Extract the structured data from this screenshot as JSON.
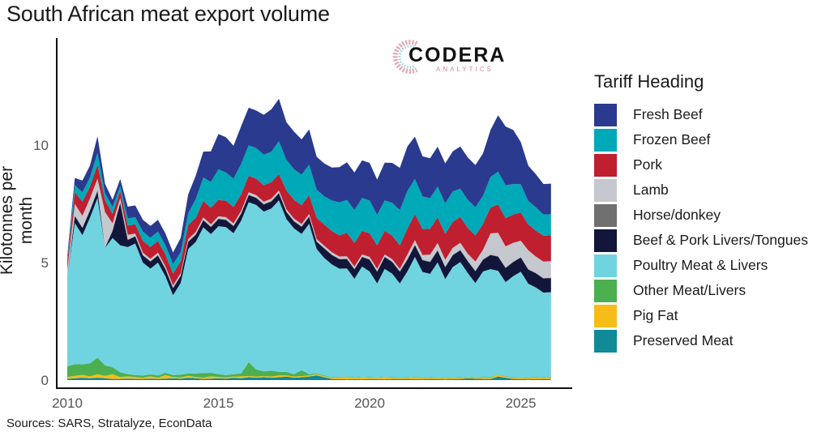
{
  "title": "South African meat export volume",
  "source": "Sources: SARS, Stratalyze, EconData",
  "logo": {
    "name": "CODERA",
    "sub": "ANALYTICS"
  },
  "chart_data": {
    "type": "area",
    "stacked": true,
    "title": "South African meat export volume",
    "xlabel": "",
    "ylabel": "Kilotonnes per month",
    "xlim": [
      2010,
      2026
    ],
    "ylim": [
      0,
      14.5
    ],
    "xticks": [
      2010,
      2015,
      2020,
      2025
    ],
    "xtick_labels": [
      "2010",
      "2015",
      "2020",
      "2025"
    ],
    "yticks": [
      0,
      5,
      10
    ],
    "ytick_labels": [
      "0",
      "5",
      "10"
    ],
    "grid": false,
    "legend_title": "Tariff Heading",
    "legend_position": "right",
    "x": [
      2010.0,
      2010.25,
      2010.5,
      2010.75,
      2011.0,
      2011.25,
      2011.5,
      2011.75,
      2012.0,
      2012.25,
      2012.5,
      2012.75,
      2013.0,
      2013.25,
      2013.5,
      2013.75,
      2014.0,
      2014.25,
      2014.5,
      2014.75,
      2015.0,
      2015.25,
      2015.5,
      2015.75,
      2016.0,
      2016.25,
      2016.5,
      2016.75,
      2017.0,
      2017.25,
      2017.5,
      2017.75,
      2018.0,
      2018.25,
      2018.5,
      2018.75,
      2019.0,
      2019.25,
      2019.5,
      2019.75,
      2020.0,
      2020.25,
      2020.5,
      2020.75,
      2021.0,
      2021.25,
      2021.5,
      2021.75,
      2022.0,
      2022.25,
      2022.5,
      2022.75,
      2023.0,
      2023.25,
      2023.5,
      2023.75,
      2024.0,
      2024.25,
      2024.5,
      2024.75,
      2025.0,
      2025.25,
      2025.5,
      2025.75,
      2026.0
    ],
    "series": [
      {
        "name": "Preserved Meat",
        "color": "#0f8a96",
        "values": [
          0.05,
          0.08,
          0.1,
          0.08,
          0.1,
          0.08,
          0.05,
          0.05,
          0.06,
          0.05,
          0.05,
          0.06,
          0.05,
          0.06,
          0.08,
          0.06,
          0.1,
          0.08,
          0.05,
          0.06,
          0.08,
          0.06,
          0.1,
          0.08,
          0.12,
          0.1,
          0.12,
          0.1,
          0.12,
          0.15,
          0.1,
          0.12,
          0.15,
          0.2,
          0.12,
          0.05,
          0.04,
          0.03,
          0.04,
          0.03,
          0.05,
          0.04,
          0.03,
          0.05,
          0.04,
          0.05,
          0.04,
          0.03,
          0.05,
          0.04,
          0.03,
          0.04,
          0.05,
          0.08,
          0.06,
          0.05,
          0.05,
          0.15,
          0.1,
          0.05,
          0.04,
          0.03,
          0.04,
          0.05,
          0.04
        ]
      },
      {
        "name": "Pig Fat",
        "color": "#f6bd19",
        "values": [
          0.08,
          0.1,
          0.12,
          0.08,
          0.15,
          0.1,
          0.2,
          0.08,
          0.1,
          0.08,
          0.05,
          0.1,
          0.05,
          0.15,
          0.05,
          0.05,
          0.08,
          0.05,
          0.05,
          0.1,
          0.05,
          0.05,
          0.05,
          0.08,
          0.05,
          0.05,
          0.05,
          0.05,
          0.08,
          0.05,
          0.05,
          0.05,
          0.05,
          0.05,
          0.05,
          0.05,
          0.08,
          0.1,
          0.05,
          0.08,
          0.05,
          0.05,
          0.08,
          0.05,
          0.05,
          0.05,
          0.08,
          0.05,
          0.05,
          0.05,
          0.05,
          0.05,
          0.05,
          0.05,
          0.05,
          0.05,
          0.05,
          0.08,
          0.05,
          0.05,
          0.05,
          0.05,
          0.08,
          0.05,
          0.08
        ]
      },
      {
        "name": "Other Meat/Livers",
        "color": "#4caf50",
        "values": [
          0.45,
          0.5,
          0.45,
          0.55,
          0.7,
          0.45,
          0.3,
          0.2,
          0.1,
          0.08,
          0.1,
          0.08,
          0.1,
          0.1,
          0.08,
          0.12,
          0.1,
          0.15,
          0.2,
          0.15,
          0.12,
          0.1,
          0.1,
          0.12,
          0.6,
          0.3,
          0.2,
          0.25,
          0.15,
          0.15,
          0.1,
          0.25,
          0.05,
          0.03,
          0.03,
          0.02,
          0.02,
          0.02,
          0.02,
          0.02,
          0.02,
          0.02,
          0.02,
          0.02,
          0.02,
          0.02,
          0.02,
          0.02,
          0.02,
          0.02,
          0.02,
          0.02,
          0.02,
          0.02,
          0.02,
          0.02,
          0.02,
          0.02,
          0.02,
          0.02,
          0.02,
          0.02,
          0.02,
          0.02,
          0.02
        ]
      },
      {
        "name": "Poultry Meat & Livers",
        "color": "#6fd4e0",
        "values": [
          3.8,
          6.0,
          5.5,
          6.2,
          6.8,
          5.0,
          5.5,
          5.4,
          5.4,
          5.6,
          4.8,
          4.5,
          4.8,
          4.1,
          3.4,
          3.9,
          5.3,
          5.6,
          6.2,
          5.9,
          6.3,
          6.3,
          6.0,
          6.5,
          6.8,
          7.0,
          6.8,
          6.9,
          7.3,
          6.5,
          6.2,
          5.8,
          6.4,
          5.3,
          5.0,
          4.8,
          4.6,
          4.6,
          4.2,
          4.7,
          4.5,
          4.0,
          4.6,
          4.4,
          4.0,
          4.5,
          5.1,
          4.5,
          4.4,
          4.9,
          4.2,
          4.7,
          4.9,
          4.4,
          4.0,
          4.5,
          4.6,
          4.4,
          4.0,
          4.3,
          4.5,
          4.0,
          3.8,
          3.6,
          3.6
        ]
      },
      {
        "name": "Beef & Pork Livers/Tongues",
        "color": "#11163a",
        "values": [
          0.0,
          0.3,
          0.3,
          0.3,
          0.3,
          0.0,
          0.3,
          1.8,
          0.3,
          0.3,
          0.3,
          0.3,
          0.3,
          0.3,
          0.3,
          0.3,
          0.3,
          0.3,
          0.3,
          0.3,
          0.3,
          0.3,
          0.3,
          0.3,
          0.3,
          0.3,
          0.3,
          0.3,
          0.3,
          0.3,
          0.3,
          0.3,
          0.3,
          0.3,
          0.4,
          0.4,
          0.4,
          0.4,
          0.4,
          0.4,
          0.5,
          0.5,
          0.5,
          0.5,
          0.5,
          0.5,
          0.5,
          0.5,
          0.5,
          0.5,
          0.5,
          0.5,
          0.5,
          0.5,
          0.5,
          0.5,
          0.6,
          0.6,
          0.6,
          0.6,
          0.6,
          0.6,
          0.6,
          0.6,
          0.6
        ]
      },
      {
        "name": "Horse/donkey",
        "color": "#707070",
        "values": [
          0.02,
          0.02,
          0.02,
          0.02,
          0.02,
          0.02,
          0.02,
          0.02,
          0.02,
          0.02,
          0.02,
          0.02,
          0.02,
          0.02,
          0.02,
          0.02,
          0.02,
          0.02,
          0.02,
          0.02,
          0.02,
          0.02,
          0.02,
          0.02,
          0.02,
          0.02,
          0.02,
          0.02,
          0.02,
          0.02,
          0.02,
          0.02,
          0.02,
          0.02,
          0.02,
          0.02,
          0.02,
          0.02,
          0.02,
          0.02,
          0.02,
          0.02,
          0.02,
          0.02,
          0.02,
          0.02,
          0.02,
          0.02,
          0.02,
          0.02,
          0.02,
          0.02,
          0.02,
          0.02,
          0.02,
          0.02,
          0.02,
          0.02,
          0.02,
          0.02,
          0.02,
          0.02,
          0.02,
          0.02,
          0.02
        ]
      },
      {
        "name": "Lamb",
        "color": "#c5c8ce",
        "values": [
          0.3,
          0.5,
          0.5,
          0.5,
          0.5,
          1.5,
          0.3,
          0.2,
          0.2,
          0.1,
          0.1,
          0.1,
          0.1,
          0.1,
          0.1,
          0.1,
          0.1,
          0.1,
          0.1,
          0.1,
          0.1,
          0.1,
          0.1,
          0.1,
          0.1,
          0.1,
          0.1,
          0.1,
          0.1,
          0.1,
          0.1,
          0.1,
          0.1,
          0.1,
          0.1,
          0.1,
          0.1,
          0.1,
          0.1,
          0.1,
          0.1,
          0.1,
          0.1,
          0.1,
          0.1,
          0.2,
          0.2,
          0.2,
          0.3,
          0.3,
          0.3,
          0.3,
          0.3,
          0.3,
          0.4,
          0.4,
          0.9,
          1.0,
          0.9,
          0.8,
          0.7,
          0.8,
          0.7,
          0.7,
          0.7
        ]
      },
      {
        "name": "Pork",
        "color": "#c01f2f",
        "values": [
          0.3,
          0.5,
          0.6,
          0.5,
          0.6,
          0.5,
          0.4,
          0.3,
          0.4,
          0.4,
          0.5,
          0.5,
          0.5,
          0.5,
          0.5,
          0.5,
          0.6,
          0.6,
          0.7,
          0.7,
          0.7,
          0.7,
          0.7,
          0.7,
          0.7,
          0.7,
          0.7,
          0.7,
          0.7,
          0.8,
          0.8,
          0.8,
          0.8,
          0.9,
          0.9,
          0.9,
          0.9,
          1.0,
          1.0,
          1.0,
          1.0,
          1.0,
          1.0,
          1.0,
          1.0,
          1.1,
          1.1,
          1.1,
          1.1,
          1.1,
          1.1,
          1.1,
          1.1,
          1.1,
          1.1,
          1.1,
          1.1,
          1.2,
          1.2,
          1.2,
          1.2,
          1.1,
          1.1,
          1.1,
          1.1
        ]
      },
      {
        "name": "Frozen Beef",
        "color": "#00a9b8",
        "values": [
          0.2,
          0.3,
          0.4,
          0.4,
          0.5,
          0.3,
          0.3,
          0.2,
          0.3,
          0.3,
          0.4,
          0.4,
          0.4,
          0.4,
          0.4,
          0.4,
          0.5,
          0.8,
          1.0,
          1.1,
          1.3,
          1.2,
          1.2,
          1.3,
          1.3,
          1.3,
          1.3,
          1.3,
          1.4,
          1.3,
          1.3,
          1.3,
          1.3,
          1.2,
          1.2,
          1.3,
          1.4,
          1.4,
          1.4,
          1.4,
          1.4,
          1.3,
          1.3,
          1.4,
          1.5,
          1.6,
          1.5,
          1.4,
          1.3,
          1.3,
          1.3,
          1.3,
          1.2,
          1.2,
          1.2,
          1.2,
          1.3,
          1.4,
          1.4,
          1.3,
          1.2,
          1.0,
          1.0,
          0.9,
          0.9
        ]
      },
      {
        "name": "Fresh Beef",
        "color": "#2a3a8f",
        "values": [
          0.1,
          0.3,
          0.5,
          0.5,
          0.7,
          0.4,
          0.3,
          0.3,
          0.5,
          0.5,
          0.5,
          0.5,
          0.5,
          0.5,
          0.5,
          0.6,
          0.8,
          1.0,
          1.1,
          1.3,
          1.5,
          1.5,
          1.4,
          1.6,
          1.6,
          1.6,
          1.7,
          1.8,
          1.8,
          1.6,
          1.6,
          1.5,
          1.5,
          1.4,
          1.4,
          1.4,
          1.5,
          1.6,
          1.6,
          1.6,
          1.6,
          1.5,
          1.6,
          1.7,
          1.8,
          1.9,
          1.8,
          1.7,
          1.7,
          1.7,
          1.7,
          1.7,
          1.8,
          1.8,
          1.8,
          1.8,
          2.0,
          2.4,
          2.5,
          2.3,
          1.8,
          1.5,
          1.4,
          1.3,
          1.3
        ]
      }
    ]
  }
}
